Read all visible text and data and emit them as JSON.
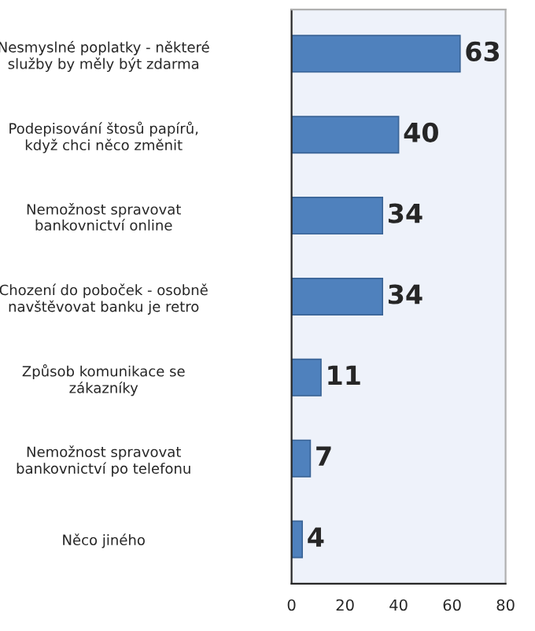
{
  "chart_data": {
    "type": "bar",
    "orientation": "horizontal",
    "categories": [
      "Nesmyslné poplatky - některé\nslužby by měly být zdarma",
      "Podepisování štosů papírů,\nkdyž chci něco změnit",
      "Nemožnost spravovat\nbankovnictví online",
      "Chození do poboček - osobně\nnavštěvovat banku je retro",
      "Způsob komunikace se\nzákazníky",
      "Nemožnost spravovat\nbankovnictví po telefonu",
      "Něco jiného"
    ],
    "values": [
      63,
      40,
      34,
      34,
      11,
      7,
      4
    ],
    "color": "#4f81bd",
    "data_labels": true,
    "xlim": [
      0,
      80
    ],
    "xticks": [
      0,
      20,
      40,
      60,
      80
    ],
    "grid": false,
    "legend": false
  }
}
